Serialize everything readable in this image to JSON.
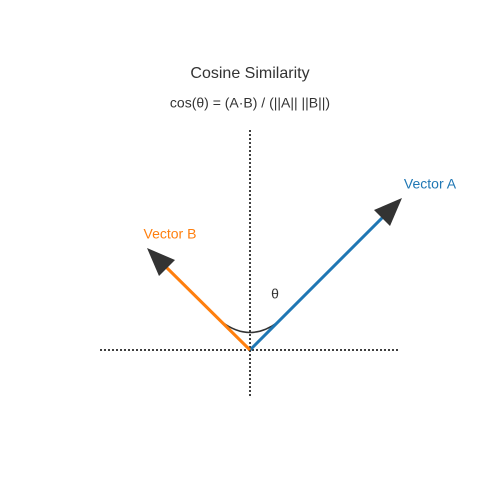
{
  "title": "Cosine Similarity",
  "formula": "cos(θ) = (A·B) / (||A|| ||B||)",
  "vectors": [
    {
      "label": "Vector A",
      "color": "#1f77b4"
    },
    {
      "label": "Vector B",
      "color": "#ff7f0e"
    }
  ],
  "angle_label": "θ"
}
